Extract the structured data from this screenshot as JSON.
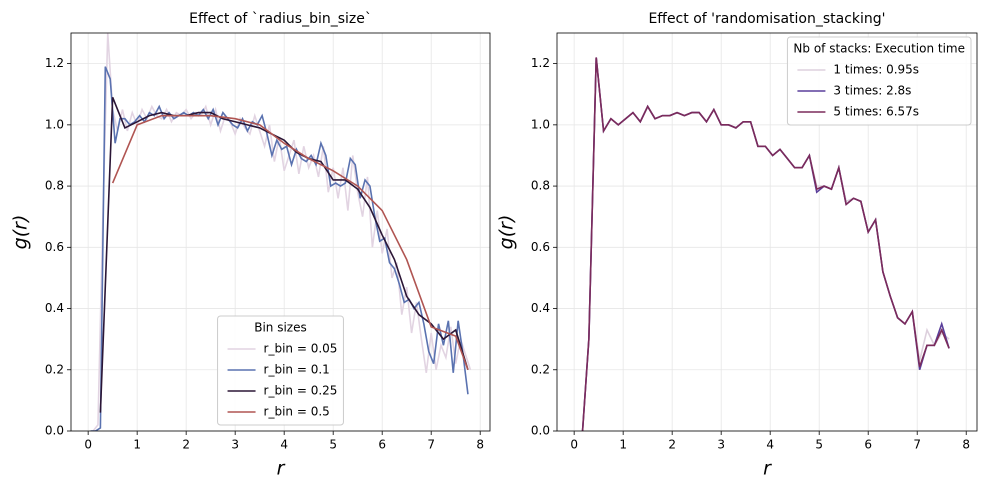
{
  "chart_data": [
    {
      "type": "line",
      "title": "Effect of `radius_bin_size`",
      "xlabel": "r",
      "ylabel": "g(r)",
      "xlim": [
        -0.35,
        8.2
      ],
      "ylim": [
        0,
        1.3
      ],
      "xticks": [
        0,
        1,
        2,
        3,
        4,
        5,
        6,
        7,
        8
      ],
      "yticks": [
        {
          "value": 0,
          "label": "0.0"
        },
        0.2,
        0.4,
        0.6,
        0.8,
        {
          "value": 1,
          "label": "1.0"
        },
        1.2
      ],
      "grid": true,
      "legend_title": "Bin sizes",
      "legend_loc": "lower center",
      "series": [
        {
          "name": "r_bin = 0.05",
          "color": "#e2d4e2",
          "x": [
            0.1,
            0.2,
            0.3,
            0.4,
            0.5,
            0.6,
            0.7,
            0.8,
            0.9,
            1.0,
            1.1,
            1.2,
            1.3,
            1.4,
            1.5,
            1.6,
            1.7,
            1.8,
            1.9,
            2.0,
            2.1,
            2.2,
            2.3,
            2.4,
            2.5,
            2.6,
            2.7,
            2.8,
            2.9,
            3.0,
            3.1,
            3.2,
            3.3,
            3.4,
            3.5,
            3.6,
            3.7,
            3.8,
            3.9,
            4.0,
            4.1,
            4.2,
            4.3,
            4.4,
            4.5,
            4.6,
            4.7,
            4.8,
            4.9,
            5.0,
            5.1,
            5.2,
            5.3,
            5.4,
            5.5,
            5.6,
            5.7,
            5.8,
            5.9,
            6.0,
            6.1,
            6.2,
            6.3,
            6.4,
            6.5,
            6.6,
            6.7,
            6.8,
            6.9,
            7.0,
            7.1,
            7.2,
            7.3,
            7.4,
            7.5,
            7.6,
            7.7,
            7.8
          ],
          "values": [
            0,
            0.02,
            0.7,
            1.3,
            1.05,
            0.98,
            1.05,
            0.98,
            1.04,
            1.0,
            1.05,
            1.02,
            1.06,
            1.03,
            1.02,
            1.05,
            1.01,
            1.04,
            1.03,
            1.05,
            1.02,
            1.04,
            1.03,
            1.06,
            1.0,
            1.05,
            0.98,
            1.03,
            1.01,
            0.97,
            1.02,
            0.99,
            0.97,
            1.03,
            0.98,
            0.93,
            1.0,
            0.88,
            0.96,
            0.85,
            0.9,
            0.95,
            0.84,
            0.93,
            0.86,
            0.9,
            0.83,
            0.93,
            0.78,
            0.86,
            0.76,
            0.86,
            0.72,
            0.9,
            0.78,
            0.7,
            0.83,
            0.6,
            0.72,
            0.58,
            0.66,
            0.5,
            0.55,
            0.38,
            0.47,
            0.32,
            0.42,
            0.3,
            0.19,
            0.32,
            0.2,
            0.28,
            0.24,
            0.34,
            0.22,
            0.3,
            0.25,
            0.2
          ]
        },
        {
          "name": "r_bin = 0.1",
          "color": "#5a72b0",
          "x": [
            0.05,
            0.15,
            0.25,
            0.35,
            0.45,
            0.55,
            0.65,
            0.75,
            0.85,
            0.95,
            1.05,
            1.15,
            1.25,
            1.35,
            1.45,
            1.55,
            1.65,
            1.75,
            1.85,
            1.95,
            2.05,
            2.15,
            2.25,
            2.35,
            2.45,
            2.55,
            2.65,
            2.75,
            2.85,
            2.95,
            3.05,
            3.15,
            3.25,
            3.35,
            3.45,
            3.55,
            3.65,
            3.75,
            3.85,
            3.95,
            4.05,
            4.15,
            4.25,
            4.35,
            4.45,
            4.55,
            4.65,
            4.75,
            4.85,
            4.95,
            5.05,
            5.15,
            5.25,
            5.35,
            5.45,
            5.55,
            5.65,
            5.75,
            5.85,
            5.95,
            6.05,
            6.15,
            6.25,
            6.35,
            6.45,
            6.55,
            6.65,
            6.75,
            6.85,
            6.95,
            7.05,
            7.15,
            7.25,
            7.35,
            7.45,
            7.55,
            7.65,
            7.75
          ],
          "values": [
            0,
            0,
            0.01,
            1.19,
            1.15,
            0.94,
            1.02,
            1.02,
            1.0,
            1.01,
            1.03,
            1.01,
            1.04,
            1.03,
            1.06,
            1.02,
            1.04,
            1.02,
            1.03,
            1.04,
            1.03,
            1.04,
            1.03,
            1.05,
            1.02,
            1.05,
            1.0,
            1.04,
            1.02,
            1.0,
            0.99,
            1.02,
            0.98,
            1.01,
            1.0,
            1.03,
            0.97,
            0.9,
            0.95,
            0.92,
            0.93,
            0.87,
            0.92,
            0.89,
            0.88,
            0.9,
            0.87,
            0.94,
            0.9,
            0.8,
            0.81,
            0.8,
            0.81,
            0.89,
            0.87,
            0.76,
            0.82,
            0.8,
            0.7,
            0.62,
            0.63,
            0.55,
            0.53,
            0.48,
            0.42,
            0.43,
            0.4,
            0.42,
            0.35,
            0.26,
            0.22,
            0.35,
            0.28,
            0.36,
            0.19,
            0.36,
            0.25,
            0.12
          ]
        },
        {
          "name": "r_bin = 0.25",
          "color": "#2b1636",
          "x": [
            0.25,
            0.5,
            0.75,
            1.0,
            1.25,
            1.5,
            1.75,
            2.0,
            2.25,
            2.5,
            2.75,
            3.0,
            3.25,
            3.5,
            3.75,
            4.0,
            4.25,
            4.5,
            4.75,
            5.0,
            5.25,
            5.5,
            5.75,
            6.0,
            6.25,
            6.5,
            6.75,
            7.0,
            7.25,
            7.5,
            7.75
          ],
          "values": [
            0.06,
            1.09,
            0.99,
            1.01,
            1.03,
            1.04,
            1.03,
            1.03,
            1.04,
            1.04,
            1.02,
            1.01,
            1.0,
            0.99,
            0.97,
            0.95,
            0.91,
            0.89,
            0.88,
            0.82,
            0.82,
            0.79,
            0.73,
            0.64,
            0.56,
            0.44,
            0.38,
            0.35,
            0.3,
            0.33,
            0.2
          ]
        },
        {
          "name": "r_bin = 0.5",
          "color": "#b05552",
          "x": [
            0.5,
            1.0,
            1.5,
            2.0,
            2.5,
            3.0,
            3.5,
            4.0,
            4.5,
            5.0,
            5.5,
            6.0,
            6.5,
            7.0,
            7.5,
            7.75
          ],
          "values": [
            0.81,
            1.0,
            1.03,
            1.03,
            1.03,
            1.02,
            1.0,
            0.94,
            0.89,
            0.85,
            0.8,
            0.72,
            0.56,
            0.34,
            0.31,
            0.2
          ]
        }
      ]
    },
    {
      "type": "line",
      "title": "Effect of 'randomisation_stacking'",
      "xlabel": "r",
      "ylabel": "g(r)",
      "xlim": [
        -0.35,
        8.22
      ],
      "ylim": [
        0,
        1.3
      ],
      "xticks": [
        0,
        1,
        2,
        3,
        4,
        5,
        6,
        7,
        8
      ],
      "yticks": [
        {
          "value": 0,
          "label": "0.0"
        },
        0.2,
        0.4,
        0.6,
        0.8,
        {
          "value": 1,
          "label": "1.0"
        },
        1.2
      ],
      "grid": true,
      "legend_title": "Nb of stacks: Execution time",
      "legend_loc": "upper right",
      "series": [
        {
          "name": "1 times: 0.95s",
          "color": "#ddd0dd",
          "x": [
            0.15,
            0.3,
            0.45,
            0.6,
            0.75,
            0.9,
            1.05,
            1.2,
            1.35,
            1.5,
            1.65,
            1.8,
            1.95,
            2.1,
            2.25,
            2.4,
            2.55,
            2.7,
            2.85,
            3.0,
            3.15,
            3.3,
            3.45,
            3.6,
            3.75,
            3.9,
            4.05,
            4.2,
            4.35,
            4.5,
            4.65,
            4.8,
            4.95,
            5.1,
            5.25,
            5.4,
            5.55,
            5.7,
            5.85,
            6.0,
            6.15,
            6.3,
            6.45,
            6.6,
            6.75,
            6.9,
            7.05,
            7.2,
            7.35,
            7.5,
            7.65
          ],
          "values": [
            -0.05,
            0.3,
            1.22,
            0.98,
            1.02,
            1.0,
            1.02,
            1.04,
            1.01,
            1.06,
            1.02,
            1.03,
            1.03,
            1.04,
            1.03,
            1.04,
            1.04,
            1.01,
            1.05,
            1.0,
            1.0,
            0.99,
            1.01,
            1.01,
            0.93,
            0.93,
            0.9,
            0.92,
            0.89,
            0.86,
            0.86,
            0.9,
            0.8,
            0.8,
            0.79,
            0.86,
            0.75,
            0.76,
            0.75,
            0.65,
            0.69,
            0.52,
            0.44,
            0.37,
            0.35,
            0.39,
            0.23,
            0.33,
            0.28,
            0.32,
            0.3
          ]
        },
        {
          "name": "3 times: 2.8s",
          "color": "#5a3f9b",
          "x": [
            0.15,
            0.3,
            0.45,
            0.6,
            0.75,
            0.9,
            1.05,
            1.2,
            1.35,
            1.5,
            1.65,
            1.8,
            1.95,
            2.1,
            2.25,
            2.4,
            2.55,
            2.7,
            2.85,
            3.0,
            3.15,
            3.3,
            3.45,
            3.6,
            3.75,
            3.9,
            4.05,
            4.2,
            4.35,
            4.5,
            4.65,
            4.8,
            4.95,
            5.1,
            5.25,
            5.4,
            5.55,
            5.7,
            5.85,
            6.0,
            6.15,
            6.3,
            6.45,
            6.6,
            6.75,
            6.9,
            7.05,
            7.2,
            7.35,
            7.5,
            7.65
          ],
          "values": [
            -0.05,
            0.3,
            1.22,
            0.98,
            1.02,
            1.0,
            1.02,
            1.04,
            1.01,
            1.06,
            1.02,
            1.03,
            1.03,
            1.04,
            1.03,
            1.04,
            1.04,
            1.01,
            1.05,
            1.0,
            1.0,
            0.99,
            1.01,
            1.01,
            0.93,
            0.93,
            0.9,
            0.92,
            0.89,
            0.86,
            0.86,
            0.9,
            0.78,
            0.8,
            0.79,
            0.86,
            0.74,
            0.76,
            0.75,
            0.65,
            0.69,
            0.52,
            0.44,
            0.37,
            0.35,
            0.39,
            0.2,
            0.28,
            0.28,
            0.35,
            0.27
          ]
        },
        {
          "name": "5 times: 6.57s",
          "color": "#7b2b5b",
          "x": [
            0.15,
            0.3,
            0.45,
            0.6,
            0.75,
            0.9,
            1.05,
            1.2,
            1.35,
            1.5,
            1.65,
            1.8,
            1.95,
            2.1,
            2.25,
            2.4,
            2.55,
            2.7,
            2.85,
            3.0,
            3.15,
            3.3,
            3.45,
            3.6,
            3.75,
            3.9,
            4.05,
            4.2,
            4.35,
            4.5,
            4.65,
            4.8,
            4.95,
            5.1,
            5.25,
            5.4,
            5.55,
            5.7,
            5.85,
            6.0,
            6.15,
            6.3,
            6.45,
            6.6,
            6.75,
            6.9,
            7.05,
            7.2,
            7.35,
            7.5,
            7.65
          ],
          "values": [
            -0.05,
            0.3,
            1.22,
            0.98,
            1.02,
            1.0,
            1.02,
            1.04,
            1.01,
            1.06,
            1.02,
            1.03,
            1.03,
            1.04,
            1.03,
            1.04,
            1.04,
            1.01,
            1.05,
            1.0,
            1.0,
            0.99,
            1.01,
            1.01,
            0.93,
            0.93,
            0.9,
            0.92,
            0.89,
            0.86,
            0.86,
            0.9,
            0.79,
            0.8,
            0.79,
            0.86,
            0.74,
            0.76,
            0.75,
            0.65,
            0.69,
            0.52,
            0.44,
            0.37,
            0.35,
            0.39,
            0.21,
            0.28,
            0.28,
            0.33,
            0.27
          ]
        }
      ]
    }
  ]
}
